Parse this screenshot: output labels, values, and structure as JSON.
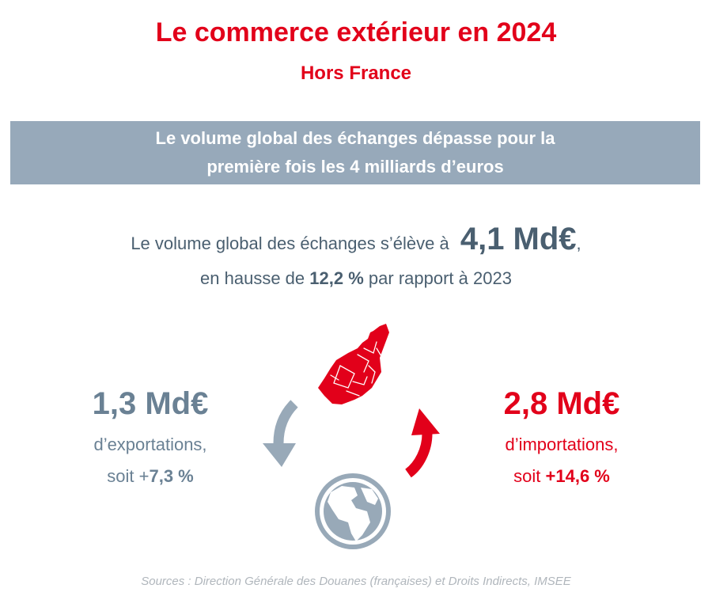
{
  "title": "Le commerce extérieur en 2024",
  "subtitle": "Hors France",
  "banner": {
    "line1": "Le volume global des échanges dépasse pour la",
    "line2": "première fois les 4 milliards d’euros"
  },
  "volume": {
    "intro": "Le volume global des échanges s’élève à",
    "value": "4,1 Md€",
    "comma": ",",
    "line2_prefix": "en hausse de",
    "growth": "12,2 %",
    "line2_suffix": "par rapport à 2023"
  },
  "exports": {
    "value": "1,3 Md€",
    "label": "d’exportations,",
    "pct_prefix": "soit +",
    "pct": "7,3 %"
  },
  "imports": {
    "value": "2,8 Md€",
    "label": "d’importations,",
    "pct_prefix": "soit",
    "pct": "+14,6 %"
  },
  "icons": {
    "monaco": "monaco-map-icon",
    "globe": "globe-icon",
    "export_arrow": "export-arrow-icon",
    "import_arrow": "import-arrow-icon"
  },
  "colors": {
    "accent_red": "#e2001a",
    "banner_grey": "#97a9ba",
    "text_slate": "#4a5f70",
    "export_grey": "#6a8194"
  },
  "sources": "Sources : Direction Générale des Douanes (françaises) et Droits Indirects, IMSEE"
}
